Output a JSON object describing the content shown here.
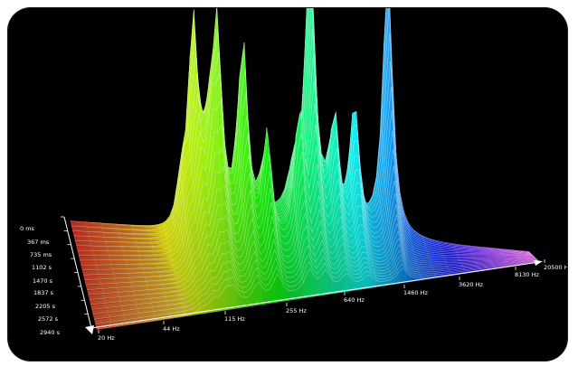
{
  "chart_data": {
    "type": "waterfall-3d",
    "title": "",
    "xlabel": "",
    "ylabel": "",
    "zlabel": "",
    "x_ticks": [
      "20 Hz",
      "44 Hz",
      "115 Hz",
      "255 Hz",
      "640 Hz",
      "1460 Hz",
      "3620 Hz",
      "8130 Hz",
      "20500 Hz"
    ],
    "y_ticks": [
      "0 ms",
      "367 ms",
      "735 ms",
      "1102 s",
      "1470 s",
      "1837 s",
      "2205 s",
      "2572 s",
      "2940 s"
    ],
    "x_range": [
      "20 Hz",
      "20500 Hz"
    ],
    "y_range": [
      "0 ms",
      "2940 s"
    ],
    "color_scale": "frequency-rainbow (red to magenta)",
    "peaks": [
      {
        "freq_hz": 125,
        "time_ms": 120,
        "level": 0.96
      },
      {
        "freq_hz": 105,
        "time_ms": 420,
        "level": 0.45
      },
      {
        "freq_hz": 170,
        "time_ms": 650,
        "level": 0.76
      },
      {
        "freq_hz": 150,
        "time_ms": 1050,
        "level": 0.5
      },
      {
        "freq_hz": 250,
        "time_ms": 760,
        "level": 0.72
      },
      {
        "freq_hz": 340,
        "time_ms": 1400,
        "level": 0.48
      },
      {
        "freq_hz": 560,
        "time_ms": 1300,
        "level": 0.52
      },
      {
        "freq_hz": 720,
        "time_ms": 380,
        "level": 1.0
      },
      {
        "freq_hz": 1000,
        "time_ms": 900,
        "level": 0.45
      },
      {
        "freq_hz": 1400,
        "time_ms": 550,
        "level": 0.45
      },
      {
        "freq_hz": 2400,
        "time_ms": 80,
        "level": 0.93
      }
    ],
    "grid": true
  }
}
